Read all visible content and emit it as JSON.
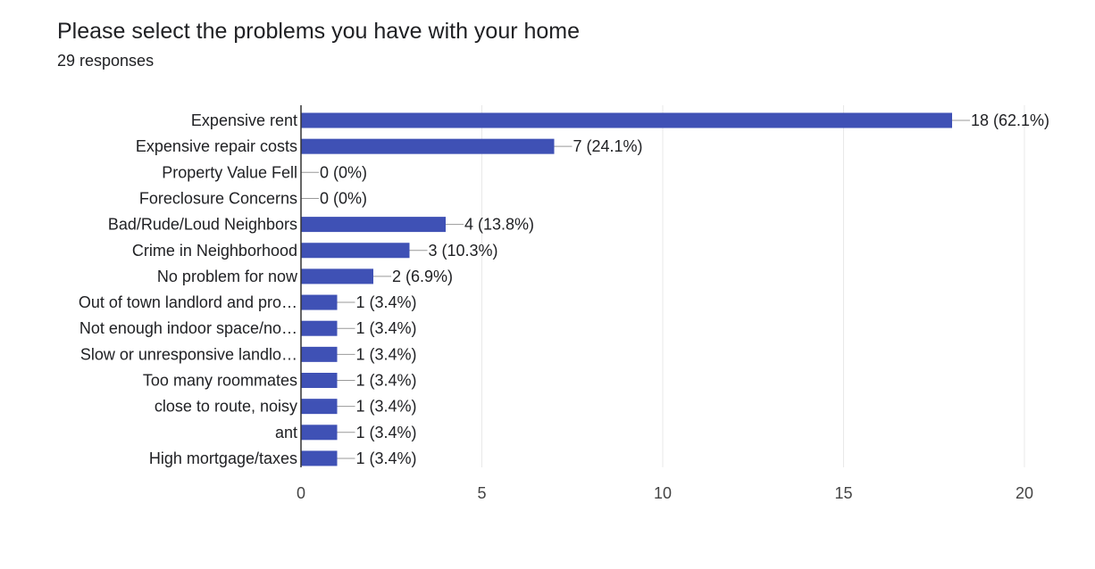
{
  "header": {
    "title": "Please select the problems you have with your home",
    "responses": "29 responses"
  },
  "colors": {
    "bar": "#3f51b5",
    "text": "#202124",
    "grid": "#e8e8e8",
    "axis": "#333333",
    "tick_label": "#444444",
    "leader": "#999999"
  },
  "chart_data": {
    "type": "bar",
    "orientation": "horizontal",
    "title": "Please select the problems you have with your home",
    "subtitle": "29 responses",
    "categories": [
      "Expensive rent",
      "Expensive repair costs",
      "Property Value Fell",
      "Foreclosure Concerns",
      "Bad/Rude/Loud Neighbors",
      "Crime in Neighborhood",
      "No problem for now",
      "Out of town landlord and pro…",
      "Not enough indoor space/no…",
      "Slow or unresponsive landlo…",
      "Too many roommates",
      "close to route, noisy",
      "ant",
      "High mortgage/taxes"
    ],
    "values": [
      18,
      7,
      0,
      0,
      4,
      3,
      2,
      1,
      1,
      1,
      1,
      1,
      1,
      1
    ],
    "data_labels": [
      "18 (62.1%)",
      "7 (24.1%)",
      "0 (0%)",
      "0 (0%)",
      "4 (13.8%)",
      "3 (10.3%)",
      "2 (6.9%)",
      "1 (3.4%)",
      "1 (3.4%)",
      "1 (3.4%)",
      "1 (3.4%)",
      "1 (3.4%)",
      "1 (3.4%)",
      "1 (3.4%)"
    ],
    "x_ticks": [
      0,
      5,
      10,
      15,
      20
    ],
    "xlim": [
      0,
      20
    ],
    "xlabel": "",
    "ylabel": "",
    "grid": true,
    "legend": "none"
  }
}
